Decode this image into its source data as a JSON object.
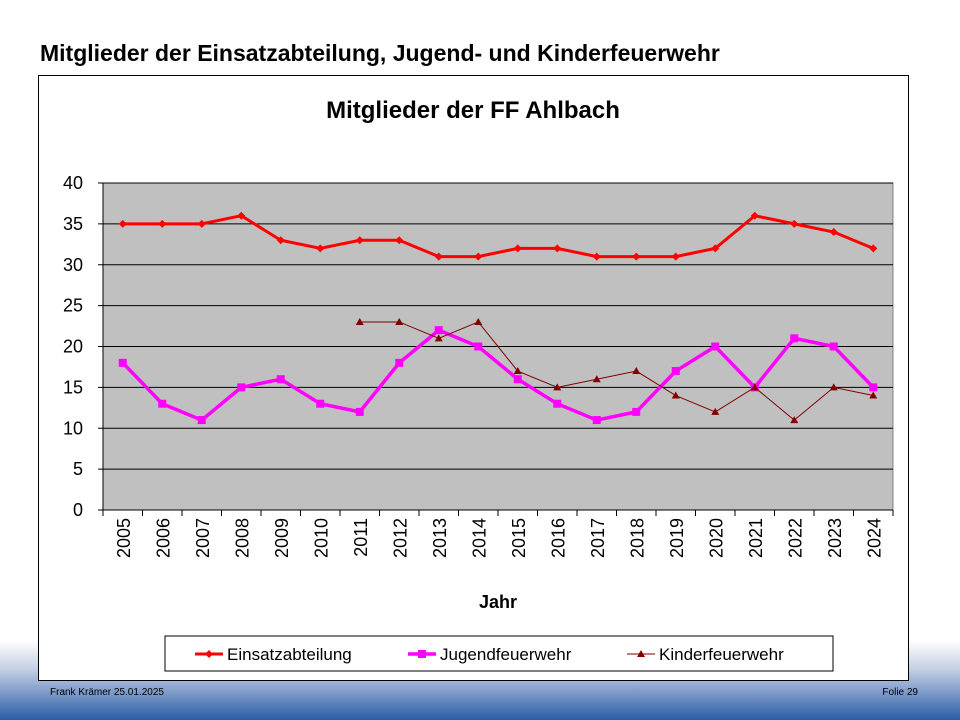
{
  "slide_title": "Mitglieder der Einsatzabteilung, Jugend- und Kinderfeuerwehr",
  "footer": {
    "left": "Frank Krämer 25.01.2025",
    "right": "Folie 29"
  },
  "chart_data": {
    "type": "line",
    "title": "Mitglieder der FF Ahlbach",
    "xlabel": "Jahr",
    "ylabel": "",
    "ylim": [
      0,
      40
    ],
    "yticks": [
      0,
      5,
      10,
      15,
      20,
      25,
      30,
      35,
      40
    ],
    "grid": true,
    "legend": "bottom",
    "categories": [
      "2005",
      "2006",
      "2007",
      "2008",
      "2009",
      "2010",
      "2011",
      "2012",
      "2013",
      "2014",
      "2015",
      "2016",
      "2017",
      "2018",
      "2019",
      "2020",
      "2021",
      "2022",
      "2023",
      "2024"
    ],
    "series": [
      {
        "name": "Einsatzabteilung",
        "color": "#ff0000",
        "marker": "diamond",
        "values": [
          35,
          35,
          35,
          36,
          33,
          32,
          33,
          33,
          31,
          31,
          32,
          32,
          31,
          31,
          31,
          32,
          36,
          35,
          34,
          32
        ]
      },
      {
        "name": "Jugendfeuerwehr",
        "color": "#ff00ff",
        "marker": "square",
        "values": [
          18,
          13,
          11,
          15,
          16,
          13,
          12,
          18,
          22,
          20,
          16,
          13,
          11,
          12,
          17,
          20,
          15,
          21,
          20,
          15
        ]
      },
      {
        "name": "Kinderfeuerwehr",
        "color": "#800000",
        "marker": "triangle",
        "values": [
          null,
          null,
          null,
          null,
          null,
          null,
          23,
          23,
          21,
          23,
          17,
          15,
          16,
          17,
          14,
          12,
          15,
          11,
          15,
          14
        ]
      }
    ]
  }
}
